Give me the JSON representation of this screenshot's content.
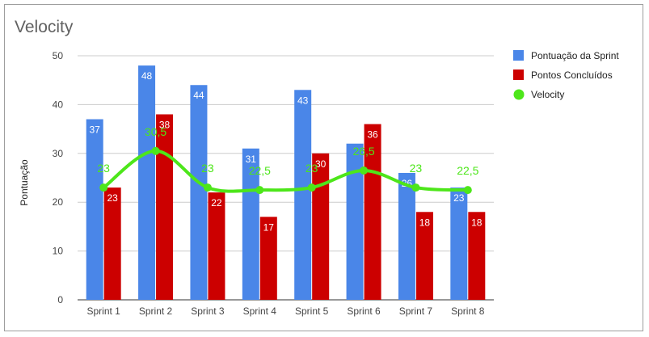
{
  "chart_data": {
    "type": "bar",
    "title": "Velocity",
    "xlabel": "",
    "ylabel": "Pontuação",
    "ylim": [
      0,
      50
    ],
    "yticks": [
      0,
      10,
      20,
      30,
      40,
      50
    ],
    "grid": true,
    "legend_position": "right",
    "categories": [
      "Sprint 1",
      "Sprint 2",
      "Sprint 3",
      "Sprint 4",
      "Sprint 5",
      "Sprint 6",
      "Sprint 7",
      "Sprint 8"
    ],
    "series": [
      {
        "name": "Pontuação da Sprint",
        "type": "bar",
        "color": "#4a86e8",
        "values": [
          37,
          48,
          44,
          31,
          43,
          32,
          26,
          23
        ],
        "labels": [
          "37",
          "48",
          "44",
          "31",
          "43",
          "",
          "26",
          "23"
        ]
      },
      {
        "name": "Pontos Concluídos",
        "type": "bar",
        "color": "#cc0000",
        "values": [
          23,
          38,
          22,
          17,
          30,
          36,
          18,
          18
        ],
        "labels": [
          "23",
          "38",
          "22",
          "17",
          "30",
          "36",
          "18",
          "18"
        ]
      },
      {
        "name": "Velocity",
        "type": "line",
        "color": "#4de61a",
        "values": [
          23,
          30.5,
          23,
          22.5,
          23,
          26.5,
          23,
          22.5
        ],
        "labels": [
          "23",
          "30,5",
          "23",
          "22,5",
          "23",
          "26,5",
          "23",
          "22,5"
        ]
      }
    ]
  }
}
